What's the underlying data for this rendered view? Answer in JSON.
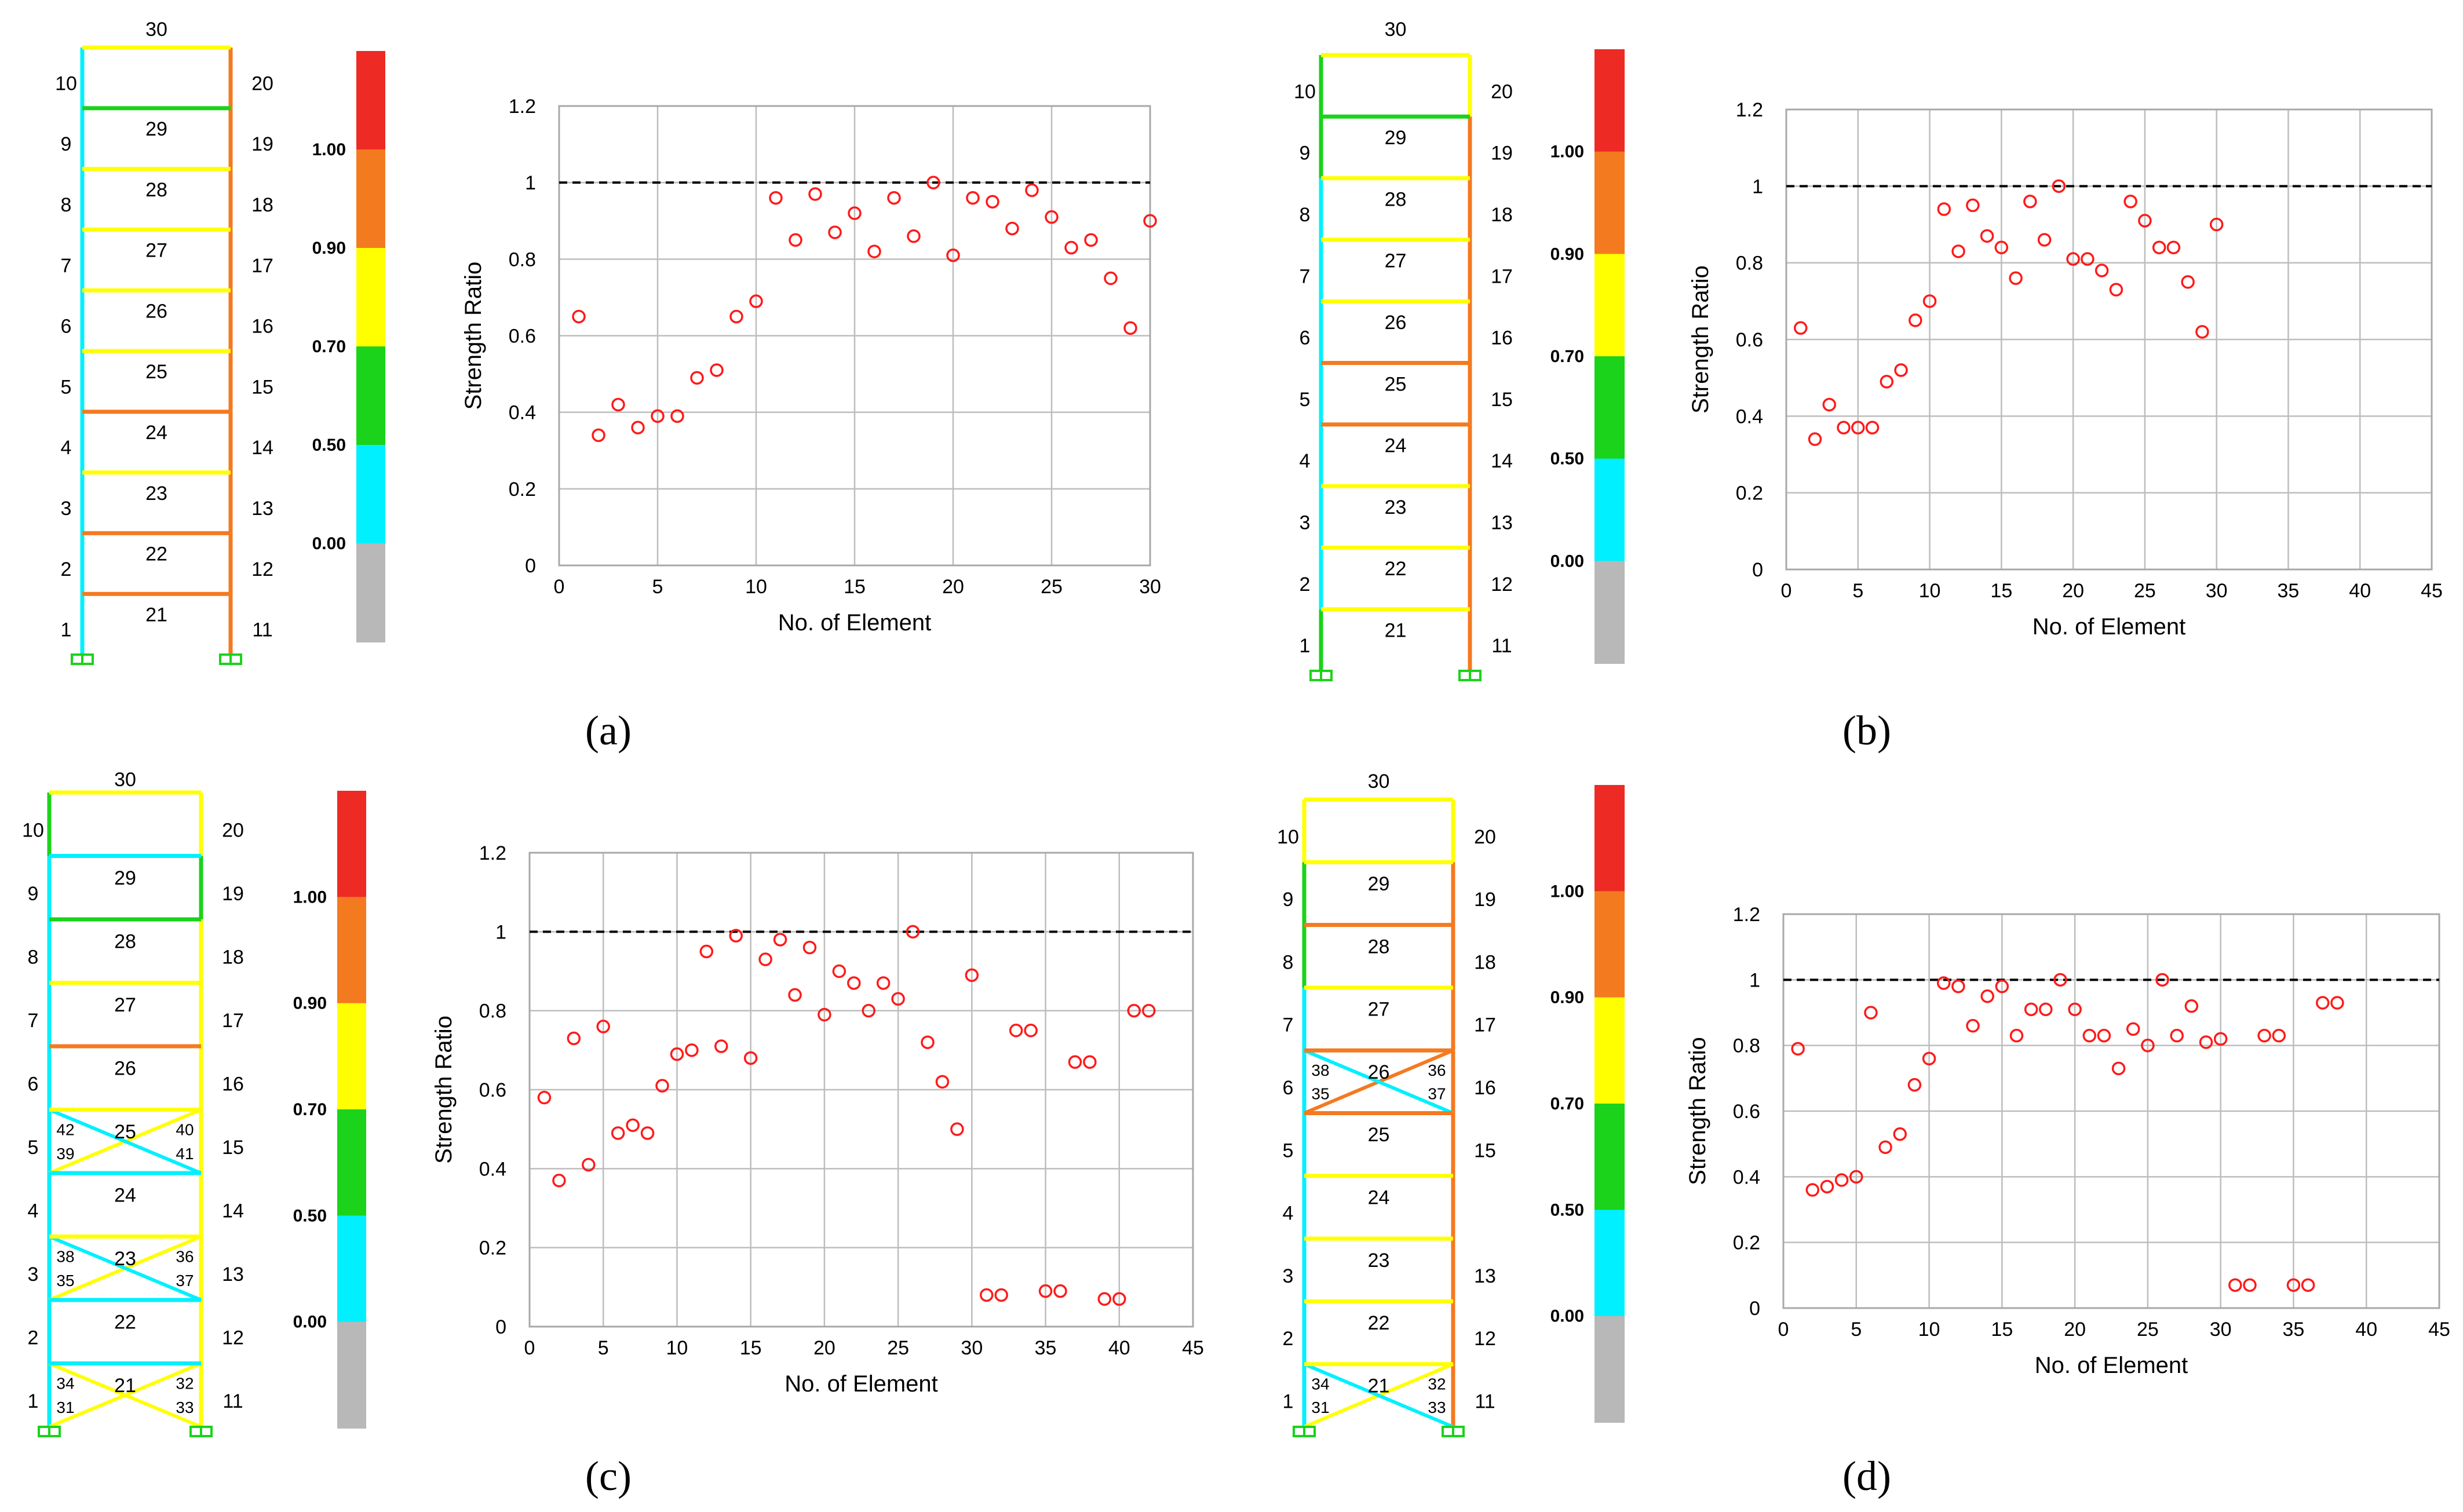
{
  "palette": {
    "red": "#ee2a24",
    "orange": "#f47a20",
    "yellow": "#ffff00",
    "green": "#1ad31a",
    "cyan": "#00f0ff",
    "gray": "#b8b8b8",
    "marker": "#ff1a1a"
  },
  "legend": {
    "ticks": [
      "1.00",
      "0.90",
      "0.70",
      "0.50",
      "0.00"
    ],
    "bands": [
      "red",
      "orange",
      "yellow",
      "green",
      "cyan",
      "gray"
    ]
  },
  "panels": [
    {
      "label": "(a)",
      "frame": {
        "col_left_labels": [
          "1",
          "2",
          "3",
          "4",
          "5",
          "6",
          "7",
          "8",
          "9",
          "10"
        ],
        "col_right_labels": [
          "11",
          "12",
          "13",
          "14",
          "15",
          "16",
          "17",
          "18",
          "19",
          "20"
        ],
        "beam_labels": [
          "21",
          "22",
          "23",
          "24",
          "25",
          "26",
          "27",
          "28",
          "29",
          "30"
        ],
        "left_col_colors": [
          "cyan",
          "cyan",
          "cyan",
          "cyan",
          "cyan",
          "cyan",
          "cyan",
          "cyan",
          "cyan",
          "cyan"
        ],
        "right_col_colors": [
          "orange",
          "orange",
          "orange",
          "orange",
          "orange",
          "orange",
          "orange",
          "orange",
          "orange",
          "orange"
        ],
        "beam_colors": [
          "orange",
          "orange",
          "yellow",
          "orange",
          "yellow",
          "yellow",
          "yellow",
          "yellow",
          "green",
          "yellow"
        ],
        "braces": []
      },
      "chart_data": {
        "type": "scatter",
        "xlabel": "No. of Element",
        "ylabel": "Strength Ratio",
        "xlim": [
          0,
          30
        ],
        "ylim": [
          0,
          1.2
        ],
        "xticks": [
          "0",
          "5",
          "10",
          "15",
          "20",
          "25",
          "30"
        ],
        "yticks": [
          "0",
          "0.2",
          "0.4",
          "0.6",
          "0.8",
          "1",
          "1.2"
        ],
        "reference_line": 1,
        "x": [
          1,
          2,
          3,
          4,
          5,
          6,
          7,
          8,
          9,
          10,
          11,
          12,
          13,
          14,
          15,
          16,
          17,
          18,
          19,
          20,
          21,
          22,
          23,
          24,
          25,
          26,
          27,
          28,
          29,
          30
        ],
        "y": [
          0.65,
          0.34,
          0.42,
          0.36,
          0.39,
          0.39,
          0.49,
          0.51,
          0.65,
          0.69,
          0.96,
          0.85,
          0.97,
          0.87,
          0.92,
          0.82,
          0.96,
          0.86,
          1.0,
          0.81,
          0.96,
          0.95,
          0.88,
          0.98,
          0.91,
          0.83,
          0.85,
          0.75,
          0.62,
          0.9
        ]
      }
    },
    {
      "label": "(b)",
      "frame": {
        "col_left_labels": [
          "1",
          "2",
          "3",
          "4",
          "5",
          "6",
          "7",
          "8",
          "9",
          "10"
        ],
        "col_right_labels": [
          "11",
          "12",
          "13",
          "14",
          "15",
          "16",
          "17",
          "18",
          "19",
          "20"
        ],
        "beam_labels": [
          "21",
          "22",
          "23",
          "24",
          "25",
          "26",
          "27",
          "28",
          "29",
          "30"
        ],
        "left_col_colors": [
          "green",
          "cyan",
          "cyan",
          "cyan",
          "cyan",
          "cyan",
          "cyan",
          "cyan",
          "green",
          "green"
        ],
        "right_col_colors": [
          "orange",
          "orange",
          "orange",
          "orange",
          "orange",
          "orange",
          "orange",
          "orange",
          "orange",
          "yellow"
        ],
        "beam_colors": [
          "yellow",
          "yellow",
          "yellow",
          "orange",
          "orange",
          "yellow",
          "yellow",
          "yellow",
          "green",
          "yellow"
        ],
        "braces": []
      },
      "chart_data": {
        "type": "scatter",
        "xlabel": "No. of Element",
        "ylabel": "Strength Ratio",
        "xlim": [
          0,
          45
        ],
        "ylim": [
          0,
          1.2
        ],
        "xticks": [
          "0",
          "5",
          "10",
          "15",
          "20",
          "25",
          "30",
          "35",
          "40",
          "45"
        ],
        "yticks": [
          "0",
          "0.2",
          "0.4",
          "0.6",
          "0.8",
          "1",
          "1.2"
        ],
        "reference_line": 1,
        "x": [
          1,
          2,
          3,
          4,
          5,
          6,
          7,
          8,
          9,
          10,
          11,
          12,
          13,
          14,
          15,
          16,
          17,
          18,
          19,
          20,
          21,
          22,
          23,
          24,
          25,
          26,
          27,
          28,
          29,
          30
        ],
        "y": [
          0.63,
          0.34,
          0.43,
          0.37,
          0.37,
          0.37,
          0.49,
          0.52,
          0.65,
          0.7,
          0.94,
          0.83,
          0.95,
          0.87,
          0.84,
          0.76,
          0.96,
          0.86,
          1.0,
          0.81,
          0.81,
          0.78,
          0.73,
          0.96,
          0.91,
          0.84,
          0.84,
          0.75,
          0.62,
          0.9
        ]
      }
    },
    {
      "label": "(c)",
      "frame": {
        "col_left_labels": [
          "1",
          "2",
          "3",
          "4",
          "5",
          "6",
          "7",
          "8",
          "9",
          "10"
        ],
        "col_right_labels": [
          "11",
          "12",
          "13",
          "14",
          "15",
          "16",
          "17",
          "18",
          "19",
          "20"
        ],
        "beam_labels": [
          "21",
          "22",
          "23",
          "24",
          "25",
          "26",
          "27",
          "28",
          "29",
          "30"
        ],
        "left_col_colors": [
          "cyan",
          "cyan",
          "cyan",
          "cyan",
          "cyan",
          "cyan",
          "cyan",
          "cyan",
          "cyan",
          "green"
        ],
        "right_col_colors": [
          "yellow",
          "yellow",
          "yellow",
          "yellow",
          "yellow",
          "yellow",
          "yellow",
          "yellow",
          "green",
          "yellow"
        ],
        "beam_colors": [
          "cyan",
          "cyan",
          "yellow",
          "cyan",
          "yellow",
          "orange",
          "yellow",
          "green",
          "cyan",
          "yellow"
        ],
        "braces": [
          {
            "story": 1,
            "tl": "34",
            "tr": "32",
            "bl": "31",
            "br": "33",
            "color_a": "yellow",
            "color_b": "yellow"
          },
          {
            "story": 3,
            "tl": "38",
            "tr": "36",
            "bl": "35",
            "br": "37",
            "color_a": "yellow",
            "color_b": "cyan"
          },
          {
            "story": 5,
            "tl": "42",
            "tr": "40",
            "bl": "39",
            "br": "41",
            "color_a": "yellow",
            "color_b": "cyan"
          }
        ]
      },
      "chart_data": {
        "type": "scatter",
        "xlabel": "No. of Element",
        "ylabel": "Strength Ratio",
        "xlim": [
          0,
          45
        ],
        "ylim": [
          0,
          1.2
        ],
        "xticks": [
          "0",
          "5",
          "10",
          "15",
          "20",
          "25",
          "30",
          "35",
          "40",
          "45"
        ],
        "yticks": [
          "0",
          "0.2",
          "0.4",
          "0.6",
          "0.8",
          "1",
          "1.2"
        ],
        "reference_line": 1,
        "x": [
          1,
          2,
          3,
          4,
          5,
          6,
          7,
          8,
          9,
          10,
          11,
          12,
          13,
          14,
          15,
          16,
          17,
          18,
          19,
          20,
          21,
          22,
          23,
          24,
          25,
          26,
          27,
          28,
          29,
          30,
          31,
          32,
          33,
          34,
          35,
          36,
          37,
          38,
          39,
          40,
          41,
          42
        ],
        "y": [
          0.58,
          0.37,
          0.73,
          0.41,
          0.76,
          0.49,
          0.51,
          0.49,
          0.61,
          0.69,
          0.7,
          0.95,
          0.71,
          0.99,
          0.68,
          0.93,
          0.98,
          0.84,
          0.96,
          0.79,
          0.9,
          0.87,
          0.8,
          0.87,
          0.83,
          1.0,
          0.72,
          0.62,
          0.5,
          0.89,
          0.08,
          0.08,
          0.75,
          0.75,
          0.09,
          0.09,
          0.67,
          0.67,
          0.07,
          0.07,
          0.8,
          0.8
        ]
      }
    },
    {
      "label": "(d)",
      "frame": {
        "col_left_labels": [
          "1",
          "2",
          "3",
          "4",
          "5",
          "6",
          "7",
          "8",
          "9",
          "10"
        ],
        "col_right_labels": [
          "11",
          "12",
          "13",
          "",
          "15",
          "16",
          "17",
          "18",
          "19",
          "20"
        ],
        "beam_labels": [
          "21",
          "22",
          "23",
          "24",
          "25",
          "26",
          "27",
          "28",
          "29",
          "30"
        ],
        "left_col_colors": [
          "cyan",
          "cyan",
          "cyan",
          "cyan",
          "cyan",
          "cyan",
          "cyan",
          "green",
          "green",
          "yellow"
        ],
        "right_col_colors": [
          "orange",
          "orange",
          "orange",
          "orange",
          "orange",
          "orange",
          "orange",
          "orange",
          "orange",
          "yellow"
        ],
        "beam_colors": [
          "yellow",
          "yellow",
          "yellow",
          "yellow",
          "orange",
          "orange",
          "yellow",
          "orange",
          "yellow",
          "yellow"
        ],
        "braces": [
          {
            "story": 1,
            "tl": "34",
            "tr": "32",
            "bl": "31",
            "br": "33",
            "color_a": "yellow",
            "color_b": "cyan"
          },
          {
            "story": 6,
            "tl": "38",
            "tr": "36",
            "bl": "35",
            "br": "37",
            "color_a": "orange",
            "color_b": "cyan"
          }
        ]
      },
      "chart_data": {
        "type": "scatter",
        "xlabel": "No. of Element",
        "ylabel": "Strength Ratio",
        "xlim": [
          0,
          45
        ],
        "ylim": [
          0,
          1.2
        ],
        "xticks": [
          "0",
          "5",
          "10",
          "15",
          "20",
          "25",
          "30",
          "35",
          "40",
          "45"
        ],
        "yticks": [
          "0",
          "0.2",
          "0.4",
          "0.6",
          "0.8",
          "1",
          "1.2"
        ],
        "reference_line": 1,
        "x": [
          1,
          2,
          3,
          4,
          5,
          6,
          7,
          8,
          9,
          10,
          11,
          12,
          13,
          14,
          15,
          16,
          17,
          18,
          19,
          20,
          21,
          22,
          23,
          24,
          25,
          26,
          27,
          28,
          29,
          30,
          31,
          32,
          33,
          34,
          35,
          36,
          37,
          38
        ],
        "y": [
          0.79,
          0.36,
          0.37,
          0.39,
          0.4,
          0.9,
          0.49,
          0.53,
          0.68,
          0.76,
          0.99,
          0.98,
          0.86,
          0.95,
          0.98,
          0.83,
          0.91,
          0.91,
          1.0,
          0.91,
          0.83,
          0.83,
          0.73,
          0.85,
          0.8,
          1.0,
          0.83,
          0.92,
          0.81,
          0.82,
          0.07,
          0.07,
          0.83,
          0.83,
          0.07,
          0.07,
          0.93,
          0.93
        ]
      }
    }
  ]
}
